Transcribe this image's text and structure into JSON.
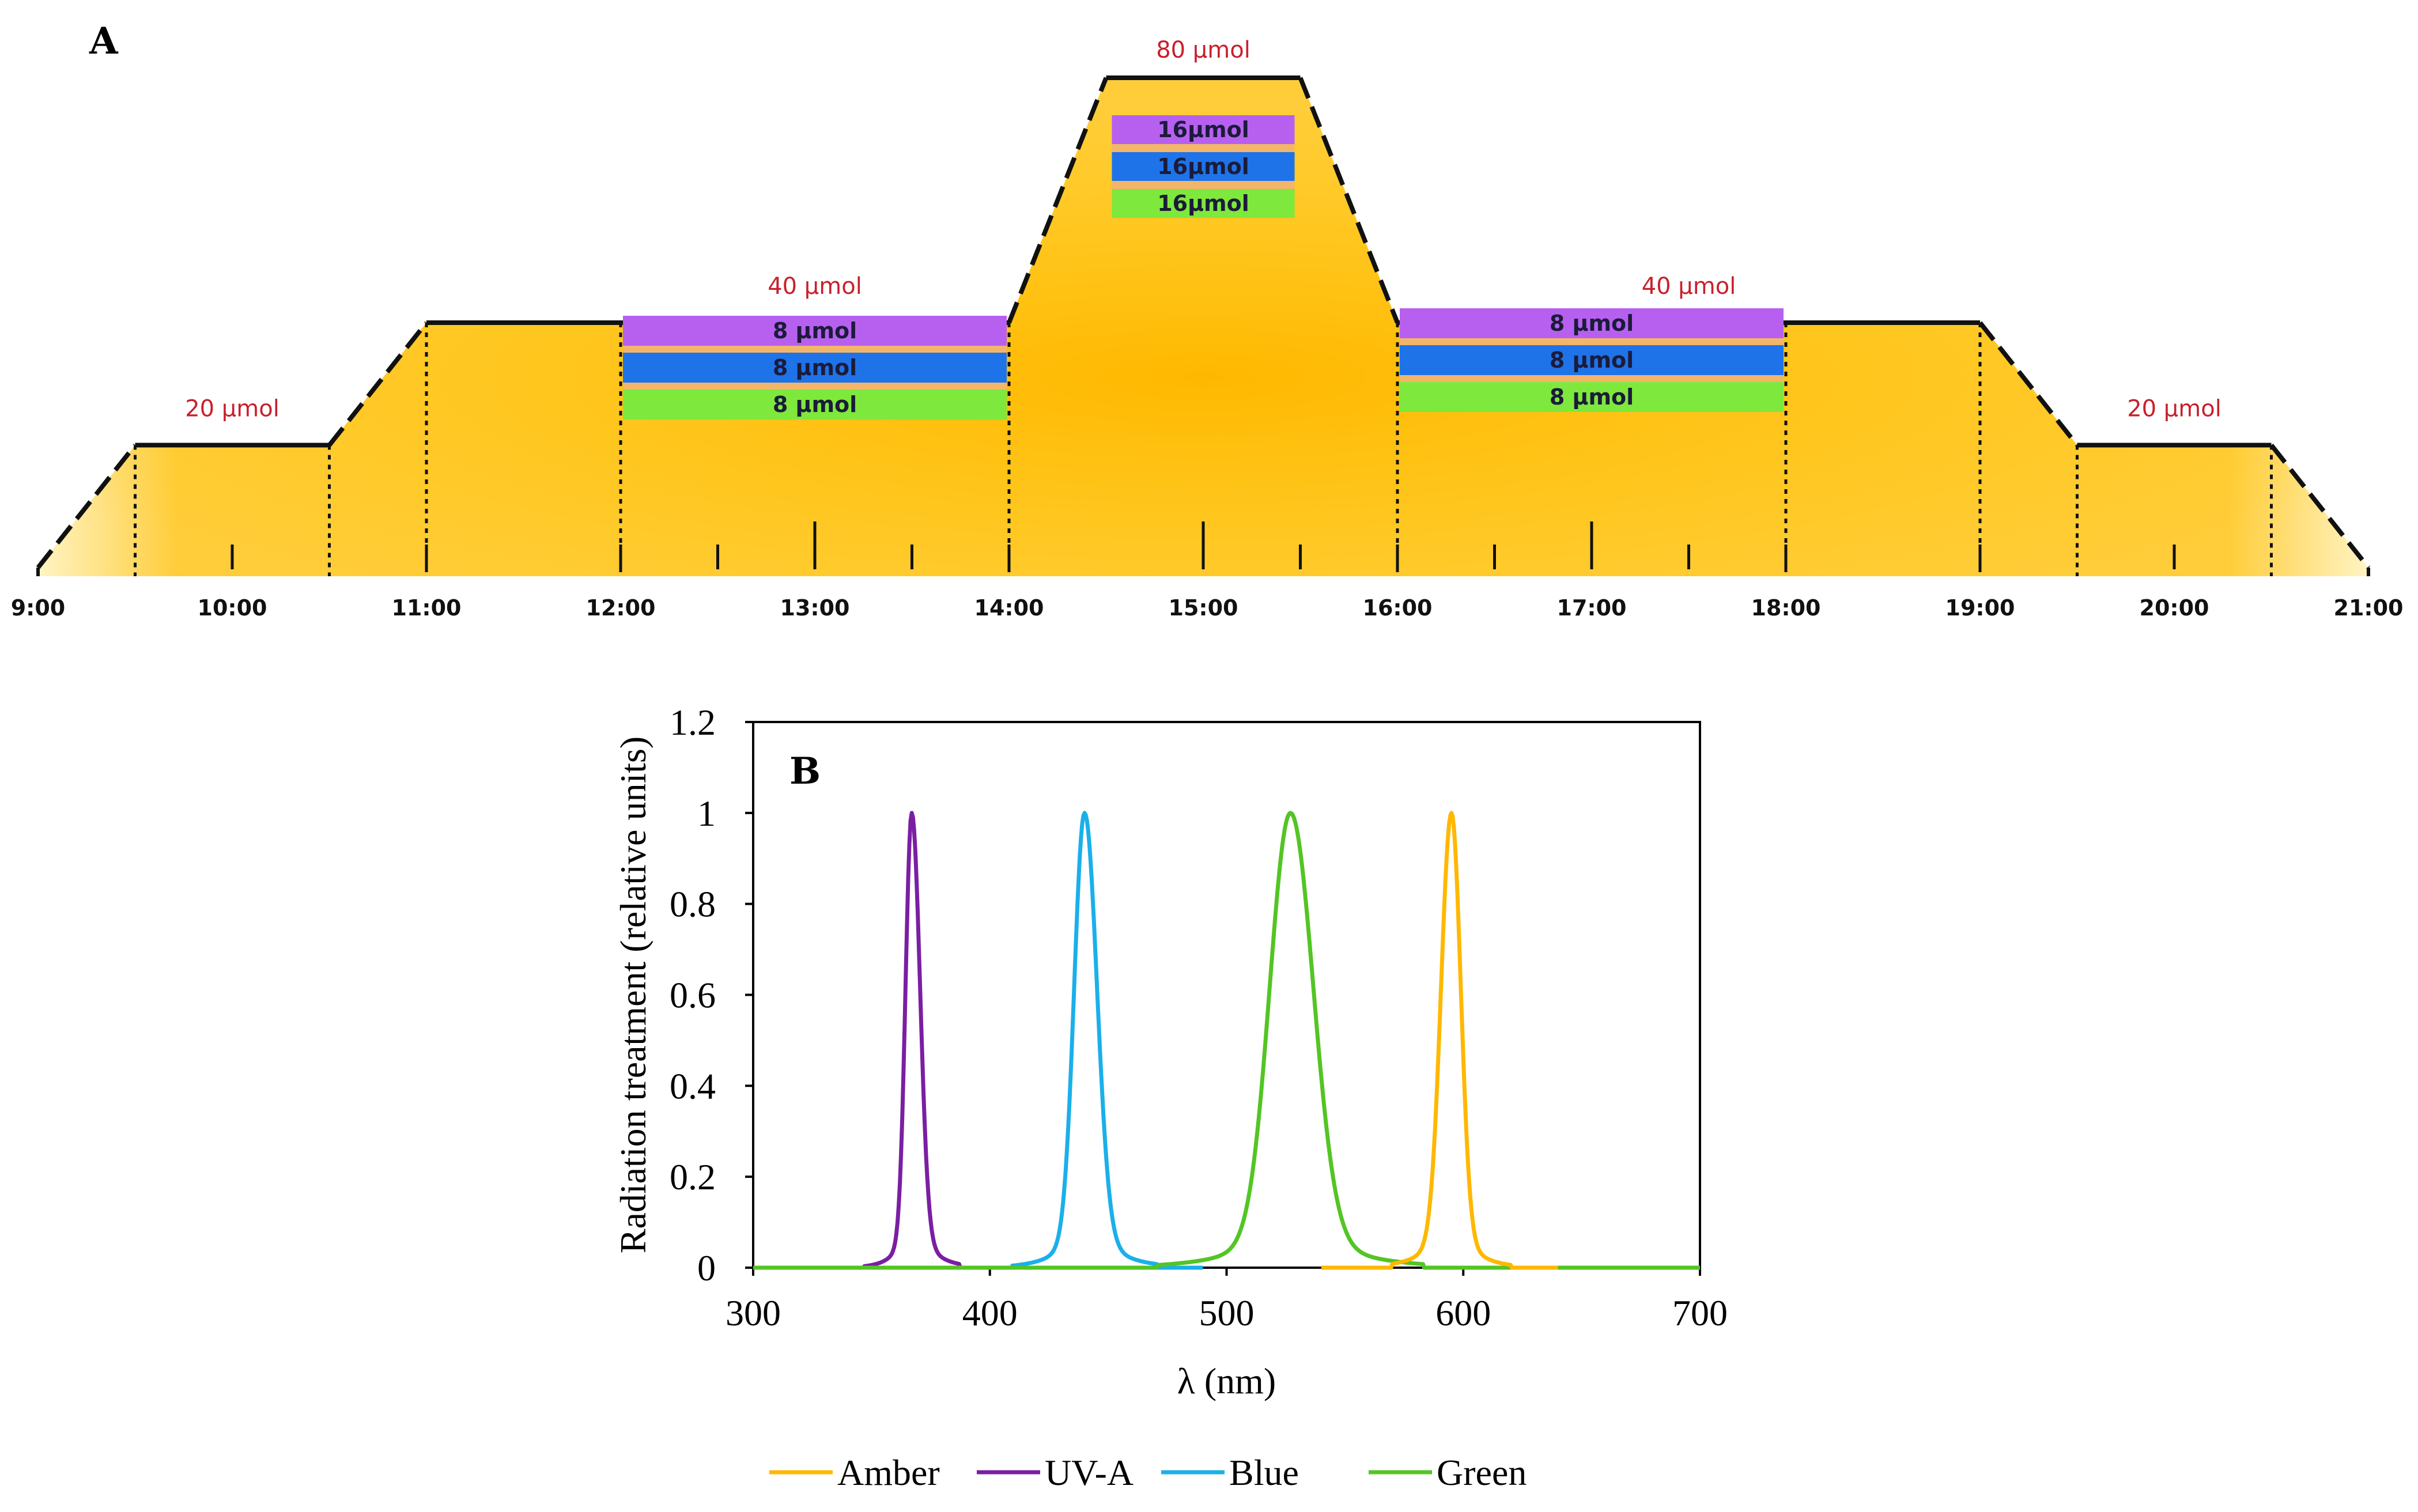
{
  "chart_data": [
    {
      "panel": "A",
      "type": "area",
      "title": "",
      "time_labels": [
        "9:00",
        "10:00",
        "11:00",
        "12:00",
        "13:00",
        "14:00",
        "15:00",
        "16:00",
        "17:00",
        "18:00",
        "19:00",
        "20:00",
        "21:00"
      ],
      "intensity_profile": [
        {
          "t": 9.0,
          "v": 0
        },
        {
          "t": 9.5,
          "v": 20
        },
        {
          "t": 10.5,
          "v": 20
        },
        {
          "t": 11.0,
          "v": 40
        },
        {
          "t": 14.0,
          "v": 40
        },
        {
          "t": 14.5,
          "v": 80
        },
        {
          "t": 15.5,
          "v": 80
        },
        {
          "t": 16.0,
          "v": 40
        },
        {
          "t": 19.0,
          "v": 40
        },
        {
          "t": 19.5,
          "v": 20
        },
        {
          "t": 20.5,
          "v": 20
        },
        {
          "t": 21.0,
          "v": 0
        }
      ],
      "dotted_dividers": [
        9.5,
        10.5,
        11.0,
        12.0,
        14.0,
        16.0,
        18.0,
        19.0,
        19.5,
        20.5
      ],
      "level_labels": [
        {
          "t": 10.0,
          "text": "20 µmol"
        },
        {
          "t": 13.0,
          "text": "40 µmol"
        },
        {
          "t": 15.0,
          "text": "80 µmol"
        },
        {
          "t": 17.5,
          "text": "40 µmol"
        },
        {
          "t": 20.0,
          "text": "20 µmol"
        }
      ],
      "band_groups": [
        {
          "t_start": 12.0,
          "t_end": 14.0,
          "bands": [
            {
              "name": "UV-A",
              "color": "#b760f0",
              "label": "8 µmol"
            },
            {
              "name": "Blue",
              "color": "#1e73e8",
              "label": "8 µmol"
            },
            {
              "name": "Green",
              "color": "#7ee83c",
              "label": "8 µmol"
            }
          ]
        },
        {
          "t_start": 14.5,
          "t_end": 15.5,
          "bands": [
            {
              "name": "UV-A",
              "color": "#b760f0",
              "label": "16µmol"
            },
            {
              "name": "Blue",
              "color": "#1e73e8",
              "label": "16µmol"
            },
            {
              "name": "Green",
              "color": "#7ee83c",
              "label": "16µmol"
            }
          ]
        },
        {
          "t_start": 16.0,
          "t_end": 18.0,
          "bands": [
            {
              "name": "UV-A",
              "color": "#b760f0",
              "label": "8 µmol"
            },
            {
              "name": "Blue",
              "color": "#1e73e8",
              "label": "8 µmol"
            },
            {
              "name": "Green",
              "color": "#7ee83c",
              "label": "8 µmol"
            }
          ]
        }
      ],
      "fill_color": "#ffc200"
    },
    {
      "panel": "B",
      "type": "line",
      "title": "",
      "xlabel": "λ (nm)",
      "ylabel": "Radiation  treatment (relative units)",
      "xlim": [
        300,
        700
      ],
      "ylim": [
        0,
        1.2
      ],
      "xticks": [
        300,
        400,
        500,
        600,
        700
      ],
      "xtick_labels": [
        "300",
        "400",
        "500",
        "600",
        "700"
      ],
      "yticks": [
        0,
        0.2,
        0.4,
        0.6,
        0.8,
        1,
        1.2
      ],
      "ytick_labels": [
        "0",
        "0.2",
        "0.4",
        "0.6",
        "0.8",
        "1",
        "1.2"
      ],
      "grid": false,
      "legend_position": "bottom",
      "series": [
        {
          "name": "Amber",
          "color": "#ffb800",
          "peak": 595,
          "fwhm_left": 10,
          "fwhm_right": 9,
          "x_range": [
            540,
            640
          ]
        },
        {
          "name": "UV-A",
          "color": "#7a1fa2",
          "peak": 367,
          "fwhm_left": 6,
          "fwhm_right": 8,
          "x_range": [
            345,
            410
          ]
        },
        {
          "name": "Blue",
          "color": "#1ab0ea",
          "peak": 440,
          "fwhm_left": 10,
          "fwhm_right": 12,
          "x_range": [
            405,
            490
          ]
        },
        {
          "name": "Green",
          "color": "#53c524",
          "peak": 527,
          "fwhm_left": 20,
          "fwhm_right": 22,
          "x_range": [
            300,
            700
          ]
        }
      ]
    }
  ]
}
